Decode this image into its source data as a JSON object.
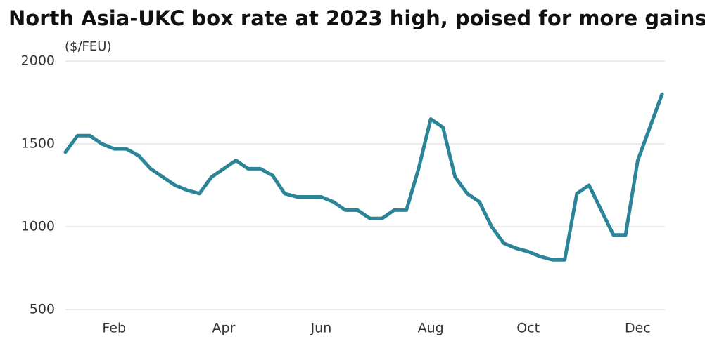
{
  "chart_data": {
    "type": "line",
    "title": "North Asia-UKC box rate at 2023 high, poised for more gains",
    "y_label": "($/FEU)",
    "categories": [
      null,
      null,
      null,
      null,
      "Feb",
      null,
      null,
      null,
      null,
      null,
      null,
      null,
      null,
      "Apr",
      null,
      null,
      null,
      null,
      null,
      null,
      null,
      "Jun",
      null,
      null,
      null,
      null,
      null,
      null,
      null,
      null,
      "Aug",
      null,
      null,
      null,
      null,
      null,
      null,
      null,
      "Oct",
      null,
      null,
      null,
      null,
      null,
      null,
      null,
      null,
      "Dec",
      null,
      null
    ],
    "series": [
      {
        "name": "North Asia-UKC",
        "color": "#2b8497",
        "values": [
          1450,
          1550,
          1550,
          1500,
          1470,
          1470,
          1430,
          1350,
          1300,
          1250,
          1220,
          1200,
          1300,
          1350,
          1400,
          1350,
          1350,
          1310,
          1200,
          1180,
          1180,
          1180,
          1150,
          1100,
          1100,
          1050,
          1050,
          1100,
          1100,
          1350,
          1650,
          1600,
          1300,
          1200,
          1150,
          1000,
          900,
          870,
          850,
          820,
          800,
          800,
          1200,
          1250,
          1100,
          950,
          950,
          1400,
          1600,
          1800
        ]
      }
    ],
    "ylim": [
      500,
      2000
    ],
    "yticks": [
      500,
      1000,
      1500,
      2000
    ],
    "grid": true
  }
}
